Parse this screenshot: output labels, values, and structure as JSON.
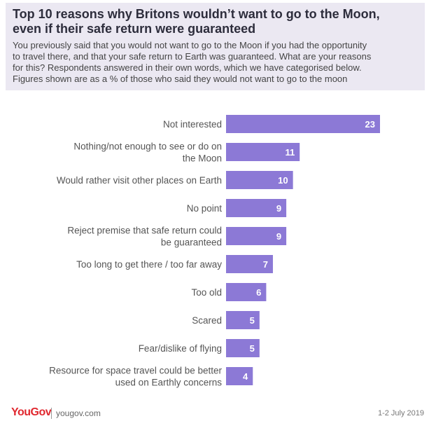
{
  "header": {
    "title_line1": "Top 10 reasons why Britons wouldn’t want to go to the Moon,",
    "title_line2": "even if their safe return were guaranteed",
    "subtitle_lines": [
      "You previously said that you would not want to go to the Moon if you had the opportunity",
      "to travel there, and that your safe return to Earth was guaranteed. What are your reasons",
      "for this? Respondents answered in their own words, which we have categorised below.",
      "Figures shown are as a % of those who said they would not want to go to the moon"
    ]
  },
  "colors": {
    "bar": "#8c79d6",
    "header_bg": "#ebe8f2",
    "brand": "#e0282f"
  },
  "chart_data": {
    "type": "bar",
    "orientation": "horizontal",
    "categories": [
      [
        "Not interested"
      ],
      [
        "Nothing/not enough to see or do on",
        "the Moon"
      ],
      [
        "Would rather visit other places on Earth"
      ],
      [
        "No point"
      ],
      [
        "Reject premise that safe return could",
        "be guaranteed"
      ],
      [
        "Too long to get there / too far away"
      ],
      [
        "Too old"
      ],
      [
        "Scared"
      ],
      [
        "Fear/dislike of flying"
      ],
      [
        "Resource for space travel could be better",
        "used on Earthly concerns"
      ]
    ],
    "values": [
      23,
      11,
      10,
      9,
      9,
      7,
      6,
      5,
      5,
      4
    ],
    "xlim": [
      0,
      23
    ],
    "grid": false,
    "data_labels": true
  },
  "footer": {
    "logo_you": "You",
    "logo_gov": "Gov",
    "site": "yougov.com",
    "date": "1-2 July 2019"
  }
}
